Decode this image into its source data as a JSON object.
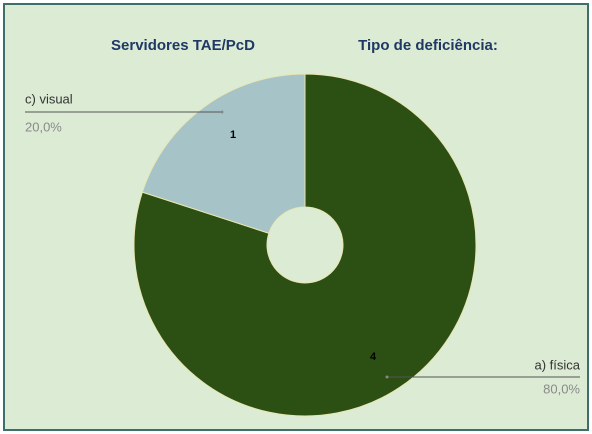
{
  "chart_data": {
    "type": "donut",
    "titles": [
      "Servidores TAE/PcD",
      "Tipo de deficiência:"
    ],
    "categories": [
      "a) física",
      "c) visual"
    ],
    "values": [
      4,
      1
    ],
    "percentages": [
      80,
      20
    ],
    "percentage_labels": [
      "80,0%",
      "20,0%"
    ],
    "colors": [
      "#2c4f14",
      "#a6c3c8"
    ]
  }
}
